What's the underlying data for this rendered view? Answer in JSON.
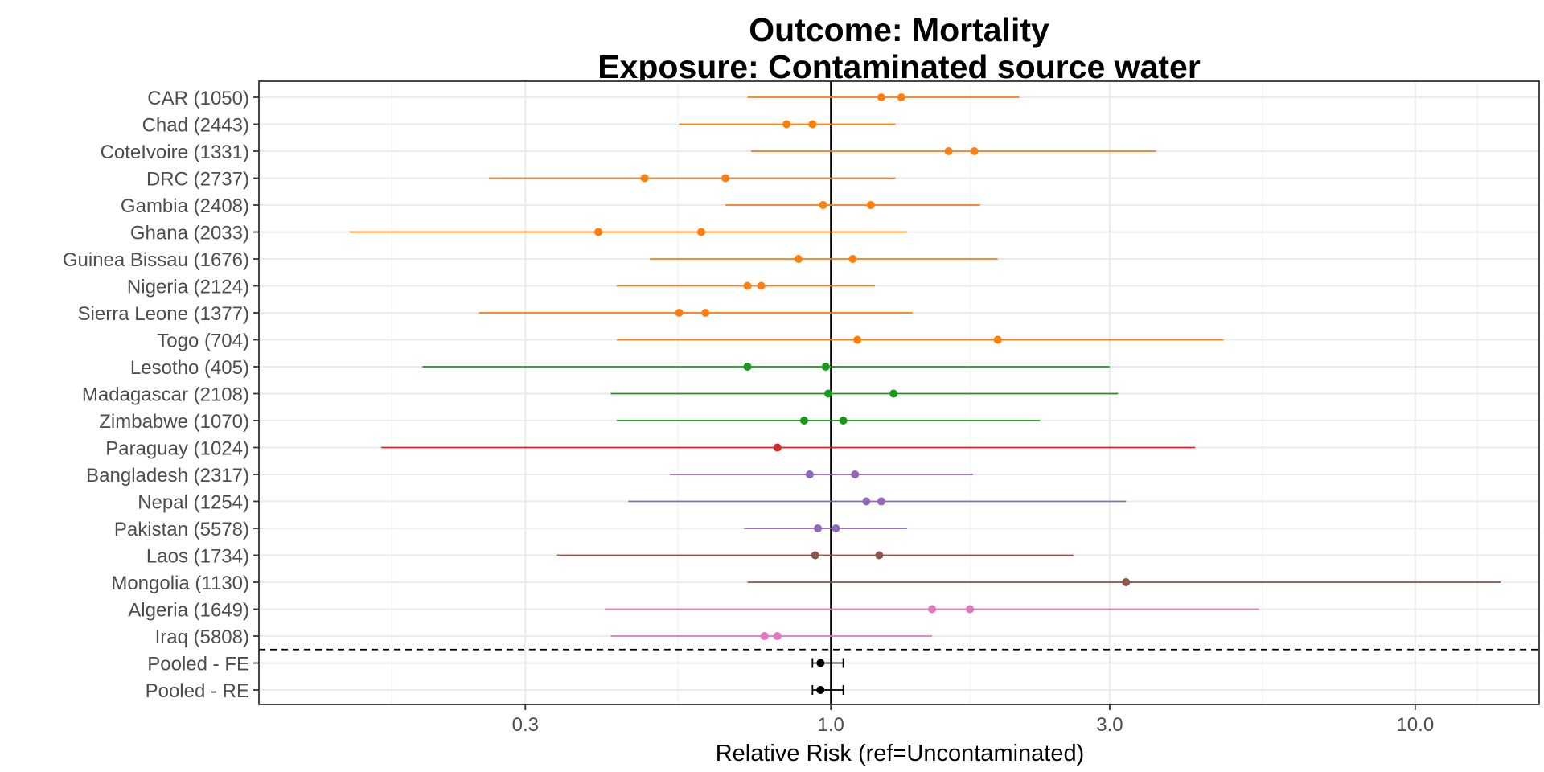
{
  "chart_data": {
    "type": "forest",
    "title_lines": [
      "Outcome: Mortality",
      "Exposure: Contaminated source water"
    ],
    "xlabel": "Relative Risk (ref=Uncontaminated)",
    "ylabel": "",
    "x_scale": "log",
    "xlim": [
      0.105,
      16.3
    ],
    "x_ticks": [
      0.3,
      1.0,
      3.0,
      10.0
    ],
    "x_tick_labels": [
      "0.3",
      "1.0",
      "3.0",
      "10.0"
    ],
    "reference_line": 1.0,
    "grid": true,
    "legend": "none",
    "rows": [
      {
        "label": "CAR (1050)",
        "ci": [
          0.72,
          2.1
        ],
        "points": [
          1.22,
          1.32
        ],
        "color": "#FF7F0E"
      },
      {
        "label": "Chad (2443)",
        "ci": [
          0.55,
          1.29
        ],
        "points": [
          0.84,
          0.93
        ],
        "color": "#FF7F0E"
      },
      {
        "label": "CoteIvoire (1331)",
        "ci": [
          0.73,
          3.6
        ],
        "points": [
          1.59,
          1.76
        ],
        "color": "#FF7F0E"
      },
      {
        "label": "DRC (2737)",
        "ci": [
          0.26,
          1.29
        ],
        "points": [
          0.48,
          0.66
        ],
        "color": "#FF7F0E"
      },
      {
        "label": "Gambia (2408)",
        "ci": [
          0.66,
          1.8
        ],
        "points": [
          0.97,
          1.17
        ],
        "color": "#FF7F0E"
      },
      {
        "label": "Ghana (2033)",
        "ci": [
          0.15,
          1.35
        ],
        "points": [
          0.4,
          0.6
        ],
        "color": "#FF7F0E"
      },
      {
        "label": "Guinea Bissau (1676)",
        "ci": [
          0.49,
          1.93
        ],
        "points": [
          0.88,
          1.09
        ],
        "color": "#FF7F0E"
      },
      {
        "label": "Nigeria (2124)",
        "ci": [
          0.43,
          1.19
        ],
        "points": [
          0.72,
          0.76
        ],
        "color": "#FF7F0E"
      },
      {
        "label": "Sierra Leone (1377)",
        "ci": [
          0.25,
          1.38
        ],
        "points": [
          0.55,
          0.61
        ],
        "color": "#FF7F0E"
      },
      {
        "label": "Togo (704)",
        "ci": [
          0.43,
          4.7
        ],
        "points": [
          1.11,
          1.93
        ],
        "color": "#FF7F0E"
      },
      {
        "label": "Lesotho (405)",
        "ci": [
          0.2,
          3.0
        ],
        "points": [
          0.72,
          0.98
        ],
        "color": "#1A9A1A"
      },
      {
        "label": "Madagascar (2108)",
        "ci": [
          0.42,
          3.1
        ],
        "points": [
          0.99,
          1.28
        ],
        "color": "#1A9A1A"
      },
      {
        "label": "Zimbabwe (1070)",
        "ci": [
          0.43,
          2.28
        ],
        "points": [
          0.9,
          1.05
        ],
        "color": "#1A9A1A"
      },
      {
        "label": "Paraguay (1024)",
        "ci": [
          0.17,
          4.2
        ],
        "points": [
          0.81
        ],
        "color": "#D62728"
      },
      {
        "label": "Bangladesh (2317)",
        "ci": [
          0.53,
          1.75
        ],
        "points": [
          0.92,
          1.1
        ],
        "color": "#9467BD"
      },
      {
        "label": "Nepal (1254)",
        "ci": [
          0.45,
          3.2
        ],
        "points": [
          1.15,
          1.22
        ],
        "color": "#9467BD"
      },
      {
        "label": "Pakistan (5578)",
        "ci": [
          0.71,
          1.35
        ],
        "points": [
          0.95,
          1.02
        ],
        "color": "#9467BD"
      },
      {
        "label": "Laos (1734)",
        "ci": [
          0.34,
          2.6
        ],
        "points": [
          0.94,
          1.21
        ],
        "color": "#8C564B"
      },
      {
        "label": "Mongolia (1130)",
        "ci": [
          0.72,
          14.0
        ],
        "points": [
          3.2
        ],
        "color": "#8C564B"
      },
      {
        "label": "Algeria (1649)",
        "ci": [
          0.41,
          5.4
        ],
        "points": [
          1.49,
          1.73
        ],
        "color": "#E377C2"
      },
      {
        "label": "Iraq (5808)",
        "ci": [
          0.42,
          1.49
        ],
        "points": [
          0.77,
          0.81
        ],
        "color": "#E377C2"
      },
      {
        "label": "Pooled - FE",
        "ci": [
          0.93,
          1.05
        ],
        "points": [
          0.96
        ],
        "color": "#000000"
      },
      {
        "label": "Pooled - RE",
        "ci": [
          0.93,
          1.05
        ],
        "points": [
          0.96
        ],
        "color": "#000000"
      }
    ],
    "separator_after_row": "Iraq (5808)"
  }
}
